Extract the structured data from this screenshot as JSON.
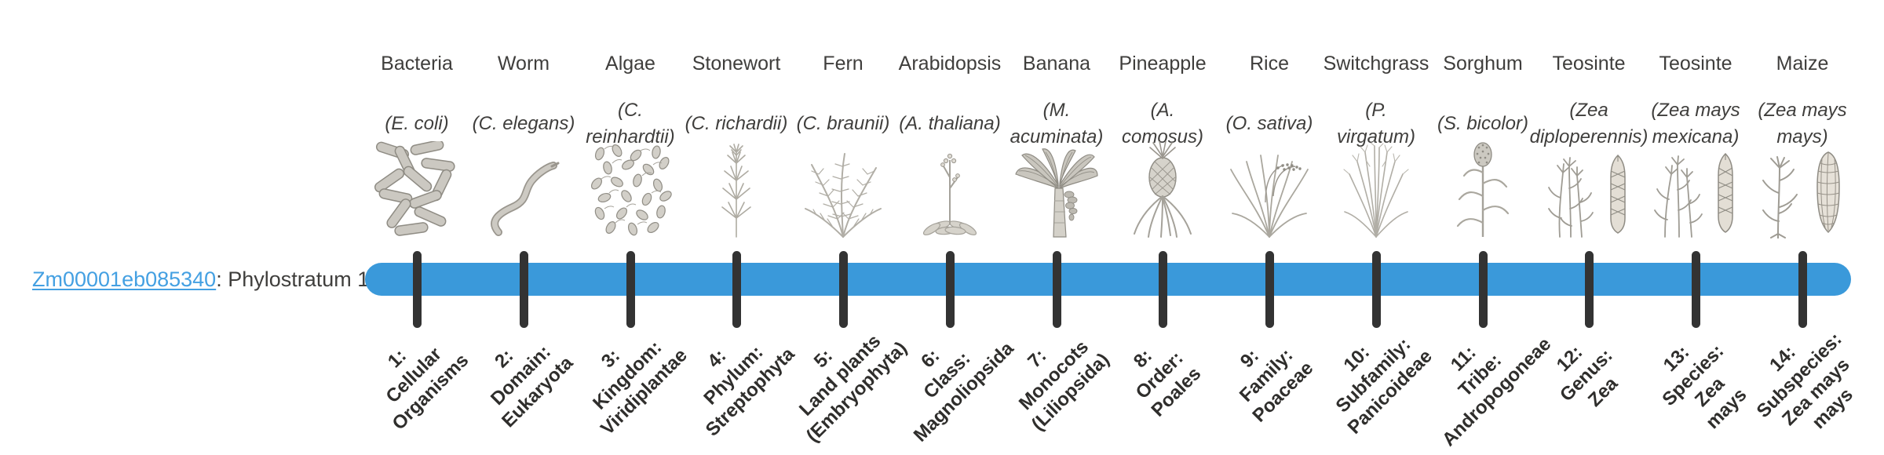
{
  "gene": {
    "link_text": "Zm00001eb085340",
    "rest": ": Phylostratum 1"
  },
  "colors": {
    "bar": "#3a99da",
    "tick": "#333333",
    "link": "#44a0e2"
  },
  "organisms": [
    {
      "common": "Bacteria",
      "scientific": "(E. coli)",
      "icon": "bacteria-icon"
    },
    {
      "common": "Worm",
      "scientific": "(C. elegans)",
      "icon": "worm-icon"
    },
    {
      "common": "Algae",
      "scientific": "(C.\nreinhardtii)",
      "icon": "algae-icon"
    },
    {
      "common": "Stonewort",
      "scientific": "(C. richardii)",
      "icon": "stonewort-icon"
    },
    {
      "common": "Fern",
      "scientific": "(C. braunii)",
      "icon": "fern-icon"
    },
    {
      "common": "Arabidopsis",
      "scientific": "(A. thaliana)",
      "icon": "arabidopsis-icon"
    },
    {
      "common": "Banana",
      "scientific": "(M.\nacuminata)",
      "icon": "banana-icon"
    },
    {
      "common": "Pineapple",
      "scientific": "(A.\ncomosus)",
      "icon": "pineapple-icon"
    },
    {
      "common": "Rice",
      "scientific": "(O. sativa)",
      "icon": "rice-icon"
    },
    {
      "common": "Switchgrass",
      "scientific": "(P.\nvirgatum)",
      "icon": "switchgrass-icon"
    },
    {
      "common": "Sorghum",
      "scientific": "(S. bicolor)",
      "icon": "sorghum-icon"
    },
    {
      "common": "Teosinte",
      "scientific": "(Zea\ndiploperennis)",
      "icon": "teosinte-diploperennis-icon"
    },
    {
      "common": "Teosinte",
      "scientific": "(Zea mays\nmexicana)",
      "icon": "teosinte-mexicana-icon"
    },
    {
      "common": "Maize",
      "scientific": "(Zea mays\nmays)",
      "icon": "maize-icon"
    }
  ],
  "phylostrata": [
    "1:\nCellular\nOrganisms",
    "2:\nDomain:\nEukaryota",
    "3:\nKingdom:\nViridiplantae",
    "4:\nPhylum:\nStreptophyta",
    "5:\nLand plants\n(Embryophyta)",
    "6:\nClass:\nMagnoliopsida",
    "7:\nMonocots\n(Liliopsida)",
    "8:\nOrder:\nPoales",
    "9:\nFamily:\nPoaceae",
    "10:\nSubfamily:\nPanicoideae",
    "11:\nTribe:\nAndropogoneae",
    "12:\nGenus:\nZea",
    "13:\nSpecies:\nZea\nmays",
    "14:\nSubspecies:\nZea mays\nmays"
  ]
}
